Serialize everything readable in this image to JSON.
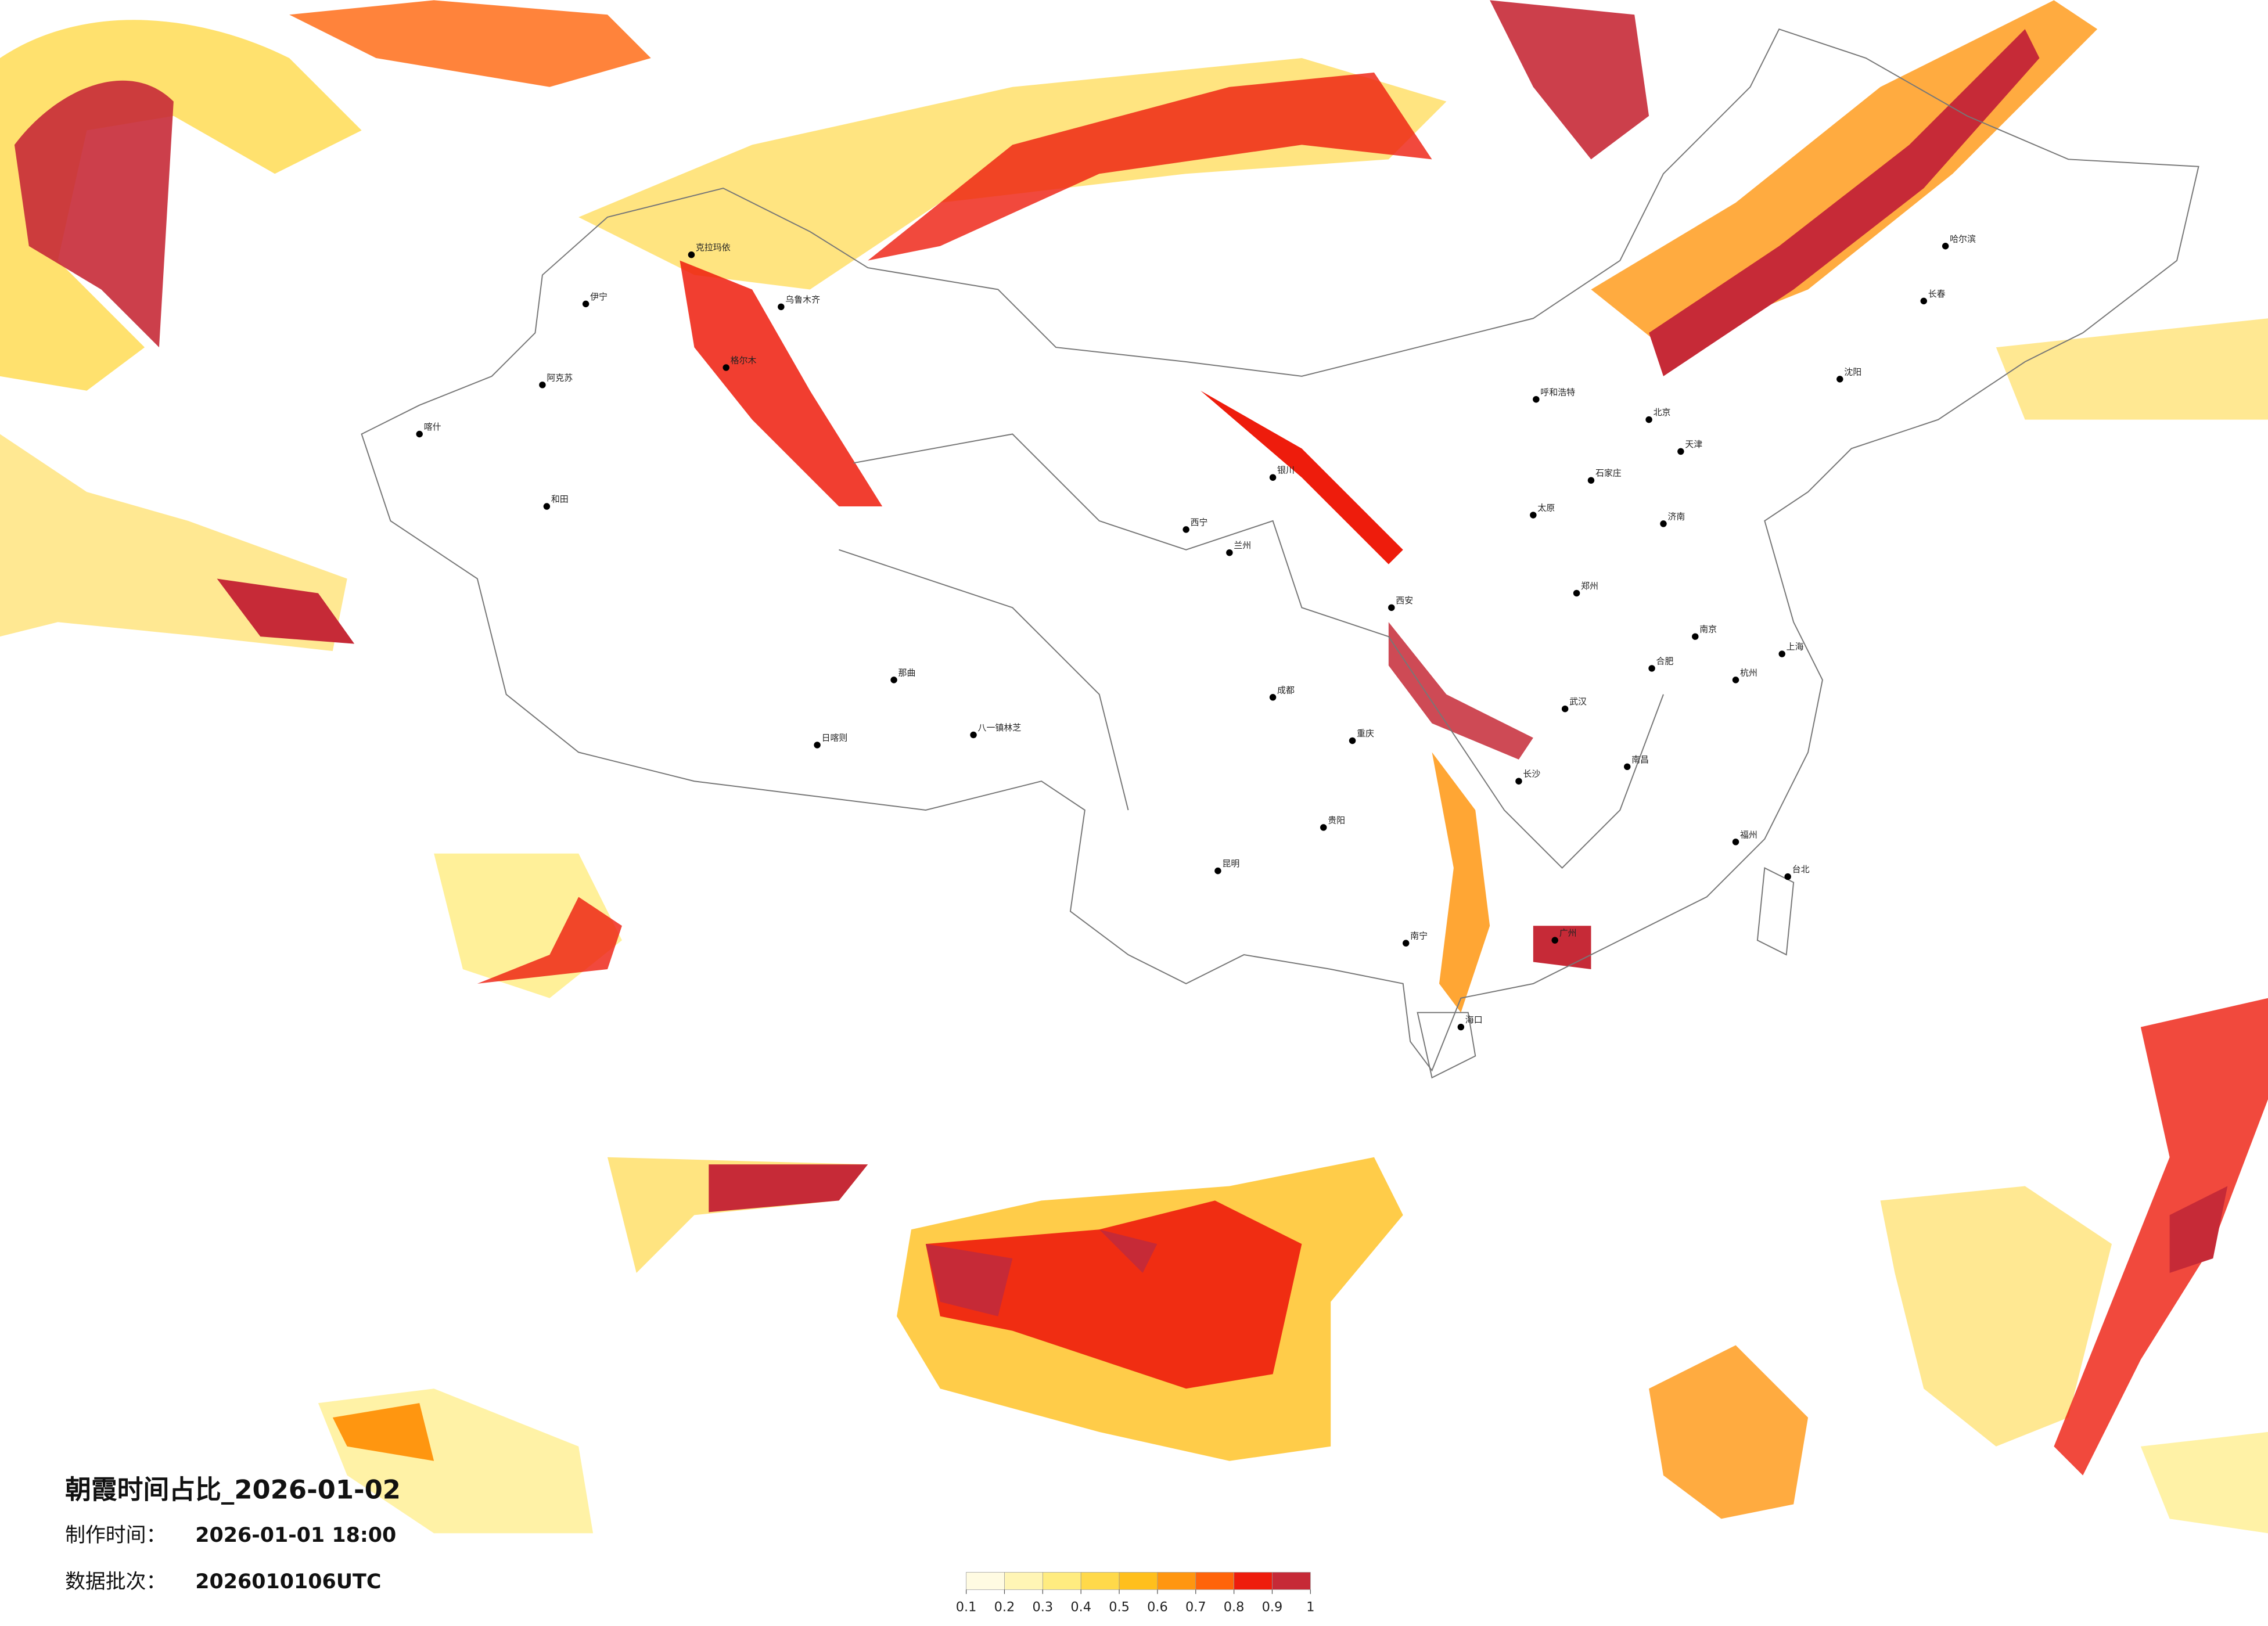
{
  "title": "朝霞时间占比_2026-01-02",
  "made_time_label": "制作时间：",
  "made_time": "2026-01-01 18:00",
  "batch_label": "数据批次：",
  "batch": "2026010106UTC",
  "legend": {
    "ticks": [
      0.1,
      0.2,
      0.3,
      0.4,
      0.5,
      0.6,
      0.7,
      0.8,
      0.9,
      1
    ],
    "colors": [
      "#fffbe2",
      "#fff5b5",
      "#ffec80",
      "#ffd94a",
      "#ffbf1c",
      "#ff9610",
      "#ff640a",
      "#ee1c0c",
      "#c62a37"
    ]
  },
  "cities": [
    "哈尔滨",
    "长春",
    "沈阳",
    "北京",
    "天津",
    "石家庄",
    "太原",
    "济南",
    "郑州",
    "西安",
    "兰州",
    "西宁",
    "银川",
    "呼和浩特",
    "乌鲁木齐",
    "喀什",
    "和田",
    "阿克苏",
    "伊宁",
    "克拉玛依",
    "日喀则",
    "八一镇林芝",
    "成都",
    "重庆",
    "贵阳",
    "昆明",
    "南宁",
    "广州",
    "长沙",
    "武汉",
    "南昌",
    "福州",
    "杭州",
    "上海",
    "南京",
    "合肥",
    "海口",
    "台北",
    "格尔木",
    "那曲"
  ]
}
